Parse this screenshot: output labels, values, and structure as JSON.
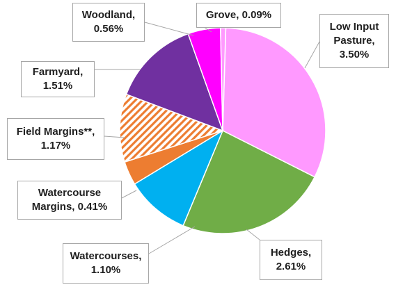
{
  "chart_data": {
    "type": "pie",
    "title": "",
    "slices": [
      {
        "name": "Low Input Pasture",
        "value": 3.5,
        "label_lines": [
          "Low Input",
          "Pasture,",
          "3.50%"
        ],
        "color": "#ff99ff",
        "pattern": "solid"
      },
      {
        "name": "Hedges",
        "value": 2.61,
        "label_lines": [
          "Hedges,",
          "2.61%"
        ],
        "color": "#70ad47",
        "pattern": "solid"
      },
      {
        "name": "Watercourses",
        "value": 1.1,
        "label_lines": [
          "Watercourses,",
          "1.10%"
        ],
        "color": "#00b0f0",
        "pattern": "solid"
      },
      {
        "name": "Watercourse Margins",
        "value": 0.41,
        "label_lines": [
          "Watercourse",
          "Margins, 0.41%"
        ],
        "color": "#ed7d31",
        "pattern": "solid"
      },
      {
        "name": "Field Margins**",
        "value": 1.17,
        "label_lines": [
          "Field Margins**,",
          "1.17%"
        ],
        "color": "#ed7d31",
        "pattern": "hatch"
      },
      {
        "name": "Farmyard",
        "value": 1.51,
        "label_lines": [
          "Farmyard,",
          "1.51%"
        ],
        "color": "#7030a0",
        "pattern": "solid"
      },
      {
        "name": "Woodland",
        "value": 0.56,
        "label_lines": [
          "Woodland,",
          "0.56%"
        ],
        "color": "#ff00ff",
        "pattern": "solid"
      },
      {
        "name": "Grove",
        "value": 0.09,
        "label_lines": [
          "Grove, 0.09%"
        ],
        "color": "#ff99ff",
        "pattern": "solid"
      }
    ],
    "start": "top, clockwise",
    "legend": "none",
    "data_labels": "callouts with leader lines"
  }
}
